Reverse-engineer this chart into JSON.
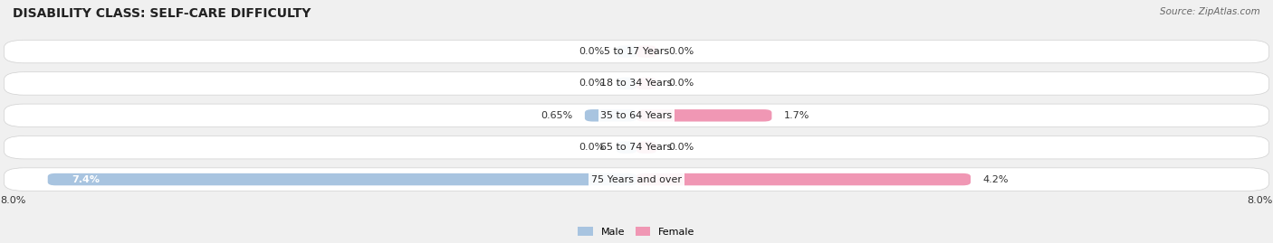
{
  "title": "DISABILITY CLASS: SELF-CARE DIFFICULTY",
  "source": "Source: ZipAtlas.com",
  "categories": [
    "5 to 17 Years",
    "18 to 34 Years",
    "35 to 64 Years",
    "65 to 74 Years",
    "75 Years and over"
  ],
  "male_values": [
    0.0,
    0.0,
    0.65,
    0.0,
    7.4
  ],
  "female_values": [
    0.0,
    0.0,
    1.7,
    0.0,
    4.2
  ],
  "male_color": "#a8c4e0",
  "female_color": "#f097b4",
  "male_color_dark": "#6fa8d0",
  "female_color_dark": "#e8608a",
  "max_value": 8.0,
  "background_color": "#f0f0f0",
  "row_bg_color": "#ffffff",
  "title_fontsize": 10,
  "label_fontsize": 8,
  "source_fontsize": 7.5
}
